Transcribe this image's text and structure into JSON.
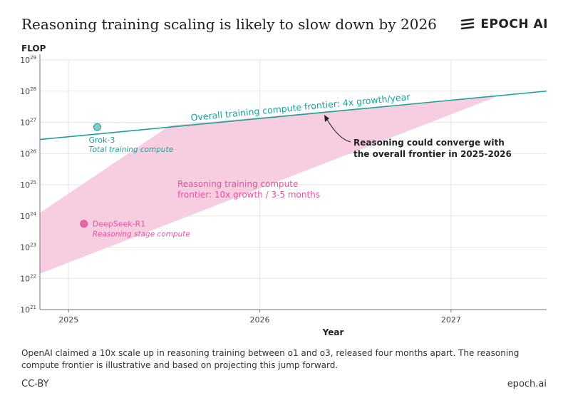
{
  "header": {
    "title": "Reasoning training scaling is likely to slow down by 2026",
    "brand": "EPOCH AI"
  },
  "footer": {
    "note": "OpenAI claimed a 10x scale up in reasoning training between o1 and o3, released four months apart. The reasoning compute frontier is illustrative and based on projecting this jump forward.",
    "license": "CC-BY",
    "site": "epoch.ai"
  },
  "colors": {
    "teal": "#1aa39a",
    "pink": "#e0559b",
    "band": "#f7cde2",
    "grid": "#e6e6e6"
  },
  "chart_data": {
    "type": "line",
    "title": "Reasoning training scaling is likely to slow down by 2026",
    "ylabel": "FLOP",
    "xlabel": "Year",
    "yscale": "log10",
    "xlim": [
      2024.85,
      2027.5
    ],
    "ylim_exp": [
      21,
      29
    ],
    "x_ticks": [
      2025,
      2026,
      2027
    ],
    "x_tick_labels": [
      "2025",
      "2026",
      "2027"
    ],
    "y_ticks_exp": [
      21,
      22,
      23,
      24,
      25,
      26,
      27,
      28,
      29
    ],
    "series": [
      {
        "name": "Overall training compute frontier: 4x growth/year",
        "color": "#1aa39a",
        "x": [
          2024.85,
          2027.5
        ],
        "y_exp": [
          26.45,
          28.0
        ]
      }
    ],
    "band": {
      "name": "Reasoning training compute frontier: 10x growth / 3-5 months",
      "color": "#f7cde2",
      "upper": {
        "x": [
          2024.85,
          2025.53,
          2027.25
        ],
        "y_exp": [
          24.1,
          26.9,
          27.85
        ]
      },
      "lower": {
        "x": [
          2024.85,
          2027.25
        ],
        "y_exp": [
          22.15,
          27.85
        ]
      }
    },
    "points": [
      {
        "label": "Grok-3",
        "sublabel": "Total training compute",
        "x": 2025.15,
        "y_exp": 26.85,
        "color": "#1aa39a"
      },
      {
        "label": "DeepSeek-R1",
        "sublabel": "Reasoning stage compute",
        "x": 2025.08,
        "y_exp": 23.75,
        "color": "#e0559b"
      }
    ],
    "annotations": [
      {
        "text": "Reasoning could converge with",
        "text2": "the overall frontier in 2025-2026"
      }
    ]
  }
}
